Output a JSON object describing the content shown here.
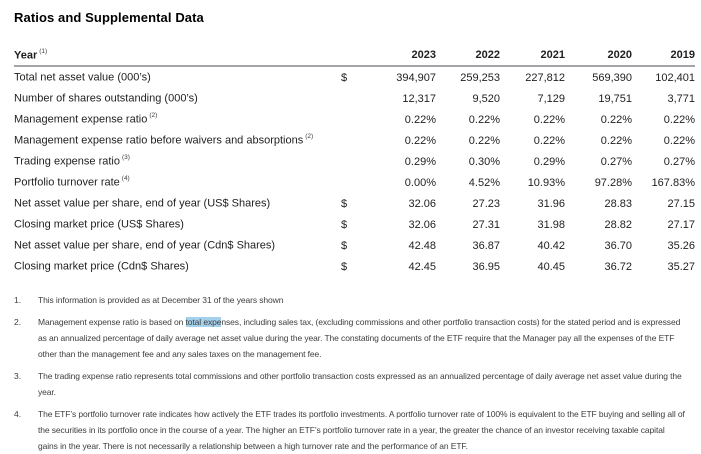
{
  "title": "Ratios and Supplemental Data",
  "colors": {
    "header_rule": "#a3a5a8",
    "selection_highlight": "#a5d0ec",
    "body_text": "#1f1f1f"
  },
  "table": {
    "header": {
      "label": "Year",
      "sup": "(1)"
    },
    "years": [
      "2023",
      "2022",
      "2021",
      "2020",
      "2019"
    ],
    "rows": [
      {
        "label": "Total net asset value (000’s)",
        "sup": "",
        "currency": "$",
        "values": [
          "394,907",
          "259,253",
          "227,812",
          "569,390",
          "102,401"
        ]
      },
      {
        "label": "Number of shares outstanding (000’s)",
        "sup": "",
        "currency": "",
        "values": [
          "12,317",
          "9,520",
          "7,129",
          "19,751",
          "3,771"
        ]
      },
      {
        "label": "Management expense ratio",
        "sup": "(2)",
        "currency": "",
        "values": [
          "0.22%",
          "0.22%",
          "0.22%",
          "0.22%",
          "0.22%"
        ]
      },
      {
        "label": "Management expense ratio before waivers and absorptions",
        "sup": "(2)",
        "currency": "",
        "values": [
          "0.22%",
          "0.22%",
          "0.22%",
          "0.22%",
          "0.22%"
        ]
      },
      {
        "label": "Trading expense ratio",
        "sup": "(3)",
        "currency": "",
        "values": [
          "0.29%",
          "0.30%",
          "0.29%",
          "0.27%",
          "0.27%"
        ]
      },
      {
        "label": "Portfolio turnover rate",
        "sup": "(4)",
        "currency": "",
        "values": [
          "0.00%",
          "4.52%",
          "10.93%",
          "97.28%",
          "167.83%"
        ]
      },
      {
        "label": "Net asset value per share, end of year (US$ Shares)",
        "sup": "",
        "currency": "$",
        "values": [
          "32.06",
          "27.23",
          "31.96",
          "28.83",
          "27.15"
        ]
      },
      {
        "label": "Closing market price (US$ Shares)",
        "sup": "",
        "currency": "$",
        "values": [
          "32.06",
          "27.31",
          "31.98",
          "28.82",
          "27.17"
        ]
      },
      {
        "label": "Net asset value per share, end of year (Cdn$ Shares)",
        "sup": "",
        "currency": "$",
        "values": [
          "42.48",
          "36.87",
          "40.42",
          "36.70",
          "35.26"
        ]
      },
      {
        "label": "Closing market price (Cdn$ Shares)",
        "sup": "",
        "currency": "$",
        "values": [
          "42.45",
          "36.95",
          "40.45",
          "36.72",
          "35.27"
        ]
      }
    ]
  },
  "footnotes": [
    {
      "num": "1.",
      "text": "This information is provided as at December 31 of the years shown"
    },
    {
      "num": "2.",
      "pre": "Management expense ratio is based on ",
      "highlight": "total expe",
      "post": "nses, including sales tax, (excluding commissions and other portfolio transaction costs) for the stated period and is expressed as an annualized percentage of daily average net asset value during the year. The constating documents of the ETF require that the Manager pay all the expenses of the ETF other than the management fee and any sales taxes on the management fee."
    },
    {
      "num": "3.",
      "text": "The trading expense ratio represents total commissions and other portfolio transaction costs expressed as an annualized percentage of daily average net asset value during the year."
    },
    {
      "num": "4.",
      "text": "The ETF’s portfolio turnover rate indicates how actively the ETF trades its portfolio investments. A portfolio turnover rate of 100% is equivalent to the ETF buying and selling all of the securities in its portfolio once in the course of a year. The higher an ETF’s portfolio turnover rate in a year, the greater the chance of an investor receiving taxable capital gains in the year. There is not necessarily a relationship between a high turnover rate and the performance of an ETF."
    }
  ]
}
